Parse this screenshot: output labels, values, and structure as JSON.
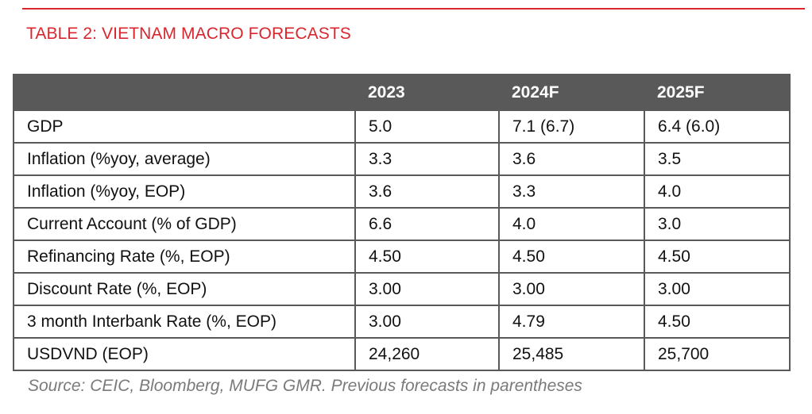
{
  "title": "TABLE 2: VIETNAM MACRO FORECASTS",
  "colors": {
    "accent": "#d9262e",
    "header_bg": "#595959",
    "source_text": "#7a7a7a"
  },
  "table": {
    "columns": [
      "",
      "2023",
      "2024F",
      "2025F"
    ],
    "rows": [
      [
        "GDP",
        "5.0",
        "7.1 (6.7)",
        "6.4 (6.0)"
      ],
      [
        "Inflation (%yoy, average)",
        "3.3",
        "3.6",
        "3.5"
      ],
      [
        "Inflation (%yoy, EOP)",
        "3.6",
        "3.3",
        "4.0"
      ],
      [
        "Current Account (% of GDP)",
        "6.6",
        "4.0",
        "3.0"
      ],
      [
        "Refinancing Rate (%, EOP)",
        "4.50",
        "4.50",
        "4.50"
      ],
      [
        "Discount Rate (%, EOP)",
        "3.00",
        "3.00",
        "3.00"
      ],
      [
        "3 month Interbank Rate (%, EOP)",
        "3.00",
        "4.79",
        "4.50"
      ],
      [
        "USDVND (EOP)",
        "24,260",
        "25,485",
        "25,700"
      ]
    ]
  },
  "source": "Source: CEIC, Bloomberg, MUFG GMR. Previous forecasts in parentheses"
}
